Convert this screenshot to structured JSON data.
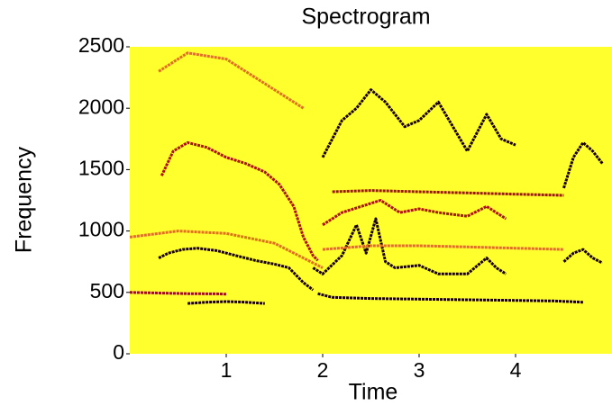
{
  "chart_data": {
    "type": "spectrogram",
    "title": "Spectrogram",
    "xlabel": "Time",
    "ylabel": "Frequency",
    "background": "#ffff2e",
    "xlim": [
      0,
      5
    ],
    "ylim": [
      0,
      2500
    ],
    "xticks": [
      1,
      2,
      3,
      4
    ],
    "yticks": [
      0,
      500,
      1000,
      1500,
      2000,
      2500
    ],
    "series": [
      {
        "color": "#b01010",
        "x": [
          0.33,
          0.45,
          0.6,
          0.8,
          1.0,
          1.2,
          1.4,
          1.55,
          1.7,
          1.8,
          1.9,
          1.95
        ],
        "values": [
          1450,
          1650,
          1720,
          1680,
          1600,
          1550,
          1480,
          1380,
          1200,
          950,
          800,
          760
        ]
      },
      {
        "color": "#1a0000",
        "x": [
          0.3,
          0.4,
          0.55,
          0.7,
          0.9,
          1.1,
          1.3,
          1.5,
          1.65,
          1.8,
          1.9
        ],
        "values": [
          780,
          820,
          850,
          860,
          840,
          800,
          760,
          730,
          700,
          580,
          520
        ]
      },
      {
        "color": "#a01010",
        "x": [
          0.0,
          0.3,
          0.6,
          0.9,
          1.0
        ],
        "values": [
          500,
          495,
          490,
          488,
          485
        ]
      },
      {
        "color": "#1a0000",
        "x": [
          0.6,
          0.8,
          1.0,
          1.2,
          1.4
        ],
        "values": [
          410,
          420,
          425,
          420,
          410
        ]
      },
      {
        "color": "#1a0000",
        "x": [
          1.95,
          2.1,
          2.5,
          3.0,
          3.5,
          4.0,
          4.4,
          4.7
        ],
        "values": [
          490,
          460,
          450,
          445,
          440,
          435,
          430,
          420
        ]
      },
      {
        "color": "#a01010",
        "x": [
          2.1,
          2.5,
          3.0,
          3.5,
          4.0,
          4.5
        ],
        "values": [
          1320,
          1330,
          1320,
          1310,
          1300,
          1290
        ]
      },
      {
        "color": "#1a0000",
        "x": [
          1.9,
          2.0,
          2.2,
          2.35,
          2.45,
          2.55,
          2.65,
          2.75,
          3.0,
          3.2,
          3.5,
          3.7,
          3.8,
          3.9
        ],
        "values": [
          700,
          650,
          800,
          1050,
          820,
          1100,
          750,
          700,
          720,
          650,
          650,
          780,
          700,
          650
        ]
      },
      {
        "color": "#1a0000",
        "x": [
          2.0,
          2.2,
          2.35,
          2.5,
          2.65,
          2.85,
          3.0,
          3.2,
          3.5,
          3.7,
          3.85,
          4.0
        ],
        "values": [
          1600,
          1900,
          2000,
          2150,
          2050,
          1850,
          1900,
          2050,
          1650,
          1950,
          1750,
          1700
        ]
      },
      {
        "color": "#b01010",
        "x": [
          2.0,
          2.2,
          2.4,
          2.6,
          2.8,
          3.0,
          3.2,
          3.5,
          3.7,
          3.9
        ],
        "values": [
          1050,
          1150,
          1200,
          1250,
          1150,
          1180,
          1150,
          1120,
          1200,
          1100
        ]
      },
      {
        "color": "#1a0000",
        "x": [
          4.5,
          4.6,
          4.7,
          4.8,
          4.9
        ],
        "values": [
          1350,
          1600,
          1720,
          1650,
          1550
        ]
      },
      {
        "color": "#1a0000",
        "x": [
          4.5,
          4.6,
          4.7,
          4.8,
          4.9
        ],
        "values": [
          750,
          820,
          850,
          780,
          740
        ]
      },
      {
        "color": "#e07020",
        "x": [
          0.3,
          0.6,
          1.0,
          1.4,
          1.8
        ],
        "values": [
          2300,
          2450,
          2400,
          2200,
          2000
        ]
      },
      {
        "color": "#e07020",
        "x": [
          0.0,
          0.5,
          1.0,
          1.5,
          2.0
        ],
        "values": [
          950,
          1000,
          980,
          900,
          700
        ]
      },
      {
        "color": "#e07020",
        "x": [
          2.0,
          2.5,
          3.0,
          3.5,
          4.0,
          4.5
        ],
        "values": [
          850,
          880,
          880,
          870,
          860,
          850
        ]
      }
    ]
  }
}
